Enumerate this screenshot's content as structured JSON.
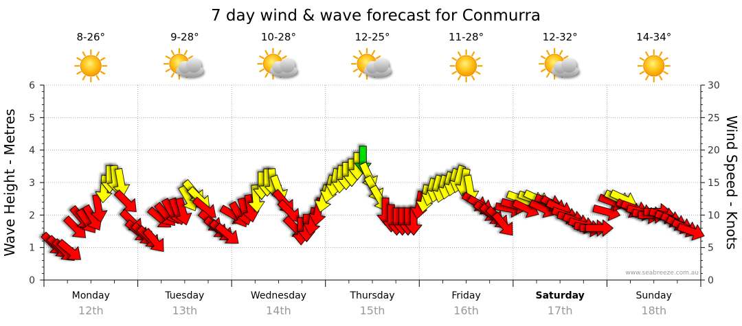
{
  "chart_data": {
    "type": "wind-wave-forecast",
    "title": "7 day wind & wave forecast for Conmurra",
    "left_axis": {
      "label": "Wave Height - Metres",
      "range": [
        0,
        6
      ],
      "ticks": [
        "0",
        "1",
        "2",
        "3",
        "4",
        "5",
        "6"
      ]
    },
    "right_axis": {
      "label": "Wind Speed - Knots",
      "range": [
        0,
        30
      ],
      "ticks": [
        "0",
        "5",
        "10",
        "15",
        "20",
        "25",
        "30"
      ]
    },
    "watermark": "www.seabreeze.com.au",
    "days": [
      {
        "name": "Monday",
        "date": "12th",
        "temp": "8-26°",
        "weather": "sunny",
        "bold": false
      },
      {
        "name": "Tuesday",
        "date": "13th",
        "temp": "9-28°",
        "weather": "partly-cloudy",
        "bold": false
      },
      {
        "name": "Wednesday",
        "date": "14th",
        "temp": "10-28°",
        "weather": "partly-cloudy",
        "bold": false
      },
      {
        "name": "Thursday",
        "date": "15th",
        "temp": "12-25°",
        "weather": "partly-cloudy",
        "bold": false
      },
      {
        "name": "Friday",
        "date": "16th",
        "temp": "11-28°",
        "weather": "sunny",
        "bold": false
      },
      {
        "name": "Saturday",
        "date": "17th",
        "temp": "12-32°",
        "weather": "partly-cloudy",
        "bold": true
      },
      {
        "name": "Sunday",
        "date": "18th",
        "temp": "14-34°",
        "weather": "sunny",
        "bold": false
      }
    ],
    "wind_series": {
      "name": "Wind Speed (knots)",
      "speed_color_bands": [
        {
          "max": 12,
          "color": "#ff0000"
        },
        {
          "max": 18,
          "color": "#ffff00"
        },
        {
          "max": 30,
          "color": "#00dd00"
        }
      ],
      "points": [
        {
          "t": 0.1,
          "speed": 5.5,
          "dir": 315
        },
        {
          "t": 0.16,
          "speed": 5.0,
          "dir": 315
        },
        {
          "t": 0.22,
          "speed": 4.5,
          "dir": 315
        },
        {
          "t": 0.28,
          "speed": 4.5,
          "dir": 310
        },
        {
          "t": 0.34,
          "speed": 8.0,
          "dir": 315
        },
        {
          "t": 0.4,
          "speed": 9.5,
          "dir": 320
        },
        {
          "t": 0.46,
          "speed": 9.0,
          "dir": 325
        },
        {
          "t": 0.52,
          "speed": 9.5,
          "dir": 330
        },
        {
          "t": 0.58,
          "speed": 11.0,
          "dir": 350
        },
        {
          "t": 0.64,
          "speed": 14.0,
          "dir": 5
        },
        {
          "t": 0.7,
          "speed": 15.5,
          "dir": 0
        },
        {
          "t": 0.76,
          "speed": 15.5,
          "dir": 355
        },
        {
          "t": 0.82,
          "speed": 15.0,
          "dir": 350
        },
        {
          "t": 0.88,
          "speed": 12.0,
          "dir": 315
        },
        {
          "t": 0.94,
          "speed": 9.0,
          "dir": 315
        },
        {
          "t": 1.0,
          "speed": 7.5,
          "dir": 310
        },
        {
          "t": 1.06,
          "speed": 7.0,
          "dir": 315
        },
        {
          "t": 1.12,
          "speed": 6.5,
          "dir": 315
        },
        {
          "t": 1.18,
          "speed": 6.0,
          "dir": 320
        },
        {
          "t": 1.24,
          "speed": 9.5,
          "dir": 310
        },
        {
          "t": 1.3,
          "speed": 10.0,
          "dir": 320
        },
        {
          "t": 1.36,
          "speed": 10.5,
          "dir": 330
        },
        {
          "t": 1.42,
          "speed": 10.5,
          "dir": 340
        },
        {
          "t": 1.48,
          "speed": 10.5,
          "dir": 345
        },
        {
          "t": 1.54,
          "speed": 12.5,
          "dir": 330
        },
        {
          "t": 1.6,
          "speed": 13.5,
          "dir": 320
        },
        {
          "t": 1.66,
          "speed": 12.5,
          "dir": 315
        },
        {
          "t": 1.72,
          "speed": 11.0,
          "dir": 310
        },
        {
          "t": 1.78,
          "speed": 9.0,
          "dir": 310
        },
        {
          "t": 1.84,
          "speed": 8.0,
          "dir": 310
        },
        {
          "t": 1.9,
          "speed": 7.5,
          "dir": 310
        },
        {
          "t": 1.96,
          "speed": 7.0,
          "dir": 310
        },
        {
          "t": 2.02,
          "speed": 10.0,
          "dir": 300
        },
        {
          "t": 2.08,
          "speed": 10.0,
          "dir": 330
        },
        {
          "t": 2.14,
          "speed": 10.5,
          "dir": 345
        },
        {
          "t": 2.2,
          "speed": 11.0,
          "dir": 350
        },
        {
          "t": 2.26,
          "speed": 12.5,
          "dir": 355
        },
        {
          "t": 2.32,
          "speed": 14.5,
          "dir": 0
        },
        {
          "t": 2.38,
          "speed": 15.0,
          "dir": 0
        },
        {
          "t": 2.44,
          "speed": 15.0,
          "dir": 355
        },
        {
          "t": 2.5,
          "speed": 14.0,
          "dir": 340
        },
        {
          "t": 2.56,
          "speed": 12.0,
          "dir": 320
        },
        {
          "t": 2.62,
          "speed": 10.5,
          "dir": 315
        },
        {
          "t": 2.68,
          "speed": 8.0,
          "dir": 315
        },
        {
          "t": 2.74,
          "speed": 7.5,
          "dir": 0
        },
        {
          "t": 2.8,
          "speed": 8.0,
          "dir": 0
        },
        {
          "t": 2.86,
          "speed": 9.0,
          "dir": 10
        },
        {
          "t": 2.92,
          "speed": 10.5,
          "dir": 10
        },
        {
          "t": 2.98,
          "speed": 12.5,
          "dir": 15
        },
        {
          "t": 3.04,
          "speed": 14.0,
          "dir": 15
        },
        {
          "t": 3.1,
          "speed": 15.0,
          "dir": 10
        },
        {
          "t": 3.16,
          "speed": 15.5,
          "dir": 5
        },
        {
          "t": 3.22,
          "speed": 16.0,
          "dir": 0
        },
        {
          "t": 3.28,
          "speed": 16.5,
          "dir": 0
        },
        {
          "t": 3.34,
          "speed": 17.5,
          "dir": 0
        },
        {
          "t": 3.4,
          "speed": 18.5,
          "dir": 0
        },
        {
          "t": 3.46,
          "speed": 16.0,
          "dir": 335
        },
        {
          "t": 3.52,
          "speed": 14.0,
          "dir": 330
        },
        {
          "t": 3.58,
          "speed": 12.5,
          "dir": 330
        },
        {
          "t": 3.64,
          "speed": 10.5,
          "dir": 0
        },
        {
          "t": 3.7,
          "speed": 9.5,
          "dir": 0
        },
        {
          "t": 3.76,
          "speed": 9.0,
          "dir": 0
        },
        {
          "t": 3.82,
          "speed": 9.0,
          "dir": 0
        },
        {
          "t": 3.88,
          "speed": 9.0,
          "dir": 0
        },
        {
          "t": 3.94,
          "speed": 9.0,
          "dir": 0
        },
        {
          "t": 4.0,
          "speed": 11.5,
          "dir": 10
        },
        {
          "t": 4.06,
          "speed": 12.5,
          "dir": 10
        },
        {
          "t": 4.12,
          "speed": 13.5,
          "dir": 15
        },
        {
          "t": 4.18,
          "speed": 14.0,
          "dir": 15
        },
        {
          "t": 4.24,
          "speed": 14.0,
          "dir": 15
        },
        {
          "t": 4.3,
          "speed": 14.5,
          "dir": 15
        },
        {
          "t": 4.36,
          "speed": 15.0,
          "dir": 15
        },
        {
          "t": 4.42,
          "speed": 15.5,
          "dir": 15
        },
        {
          "t": 4.48,
          "speed": 15.0,
          "dir": 10
        },
        {
          "t": 4.54,
          "speed": 14.0,
          "dir": 350
        },
        {
          "t": 4.6,
          "speed": 12.0,
          "dir": 300
        },
        {
          "t": 4.66,
          "speed": 11.5,
          "dir": 300
        },
        {
          "t": 4.72,
          "speed": 10.5,
          "dir": 305
        },
        {
          "t": 4.78,
          "speed": 10.0,
          "dir": 310
        },
        {
          "t": 4.84,
          "speed": 9.5,
          "dir": 315
        },
        {
          "t": 4.9,
          "speed": 8.5,
          "dir": 320
        },
        {
          "t": 4.96,
          "speed": 11.0,
          "dir": 280
        },
        {
          "t": 5.02,
          "speed": 11.5,
          "dir": 285
        },
        {
          "t": 5.08,
          "speed": 12.5,
          "dir": 290
        },
        {
          "t": 5.14,
          "speed": 11.0,
          "dir": 295
        },
        {
          "t": 5.2,
          "speed": 12.5,
          "dir": 290
        },
        {
          "t": 5.26,
          "speed": 12.5,
          "dir": 295
        },
        {
          "t": 5.32,
          "speed": 11.0,
          "dir": 295
        },
        {
          "t": 5.38,
          "speed": 12.0,
          "dir": 290
        },
        {
          "t": 5.44,
          "speed": 11.5,
          "dir": 300
        },
        {
          "t": 5.5,
          "speed": 11.0,
          "dir": 295
        },
        {
          "t": 5.56,
          "speed": 10.0,
          "dir": 290
        },
        {
          "t": 5.62,
          "speed": 9.5,
          "dir": 285
        },
        {
          "t": 5.68,
          "speed": 9.0,
          "dir": 290
        },
        {
          "t": 5.74,
          "speed": 8.5,
          "dir": 285
        },
        {
          "t": 5.8,
          "speed": 8.0,
          "dir": 280
        },
        {
          "t": 5.86,
          "speed": 8.0,
          "dir": 270
        },
        {
          "t": 5.92,
          "speed": 8.0,
          "dir": 270
        },
        {
          "t": 6.0,
          "speed": 10.5,
          "dir": 285
        },
        {
          "t": 6.06,
          "speed": 12.0,
          "dir": 290
        },
        {
          "t": 6.12,
          "speed": 12.5,
          "dir": 295
        },
        {
          "t": 6.18,
          "speed": 12.5,
          "dir": 295
        },
        {
          "t": 6.24,
          "speed": 11.0,
          "dir": 300
        },
        {
          "t": 6.3,
          "speed": 11.0,
          "dir": 290
        },
        {
          "t": 6.36,
          "speed": 10.5,
          "dir": 285
        },
        {
          "t": 6.42,
          "speed": 10.0,
          "dir": 280
        },
        {
          "t": 6.48,
          "speed": 10.0,
          "dir": 270
        },
        {
          "t": 6.54,
          "speed": 10.5,
          "dir": 270
        },
        {
          "t": 6.6,
          "speed": 10.0,
          "dir": 285
        },
        {
          "t": 6.66,
          "speed": 9.5,
          "dir": 290
        },
        {
          "t": 6.72,
          "speed": 9.0,
          "dir": 295
        },
        {
          "t": 6.78,
          "speed": 8.5,
          "dir": 295
        },
        {
          "t": 6.84,
          "speed": 8.0,
          "dir": 295
        },
        {
          "t": 6.9,
          "speed": 7.5,
          "dir": 290
        }
      ]
    }
  }
}
